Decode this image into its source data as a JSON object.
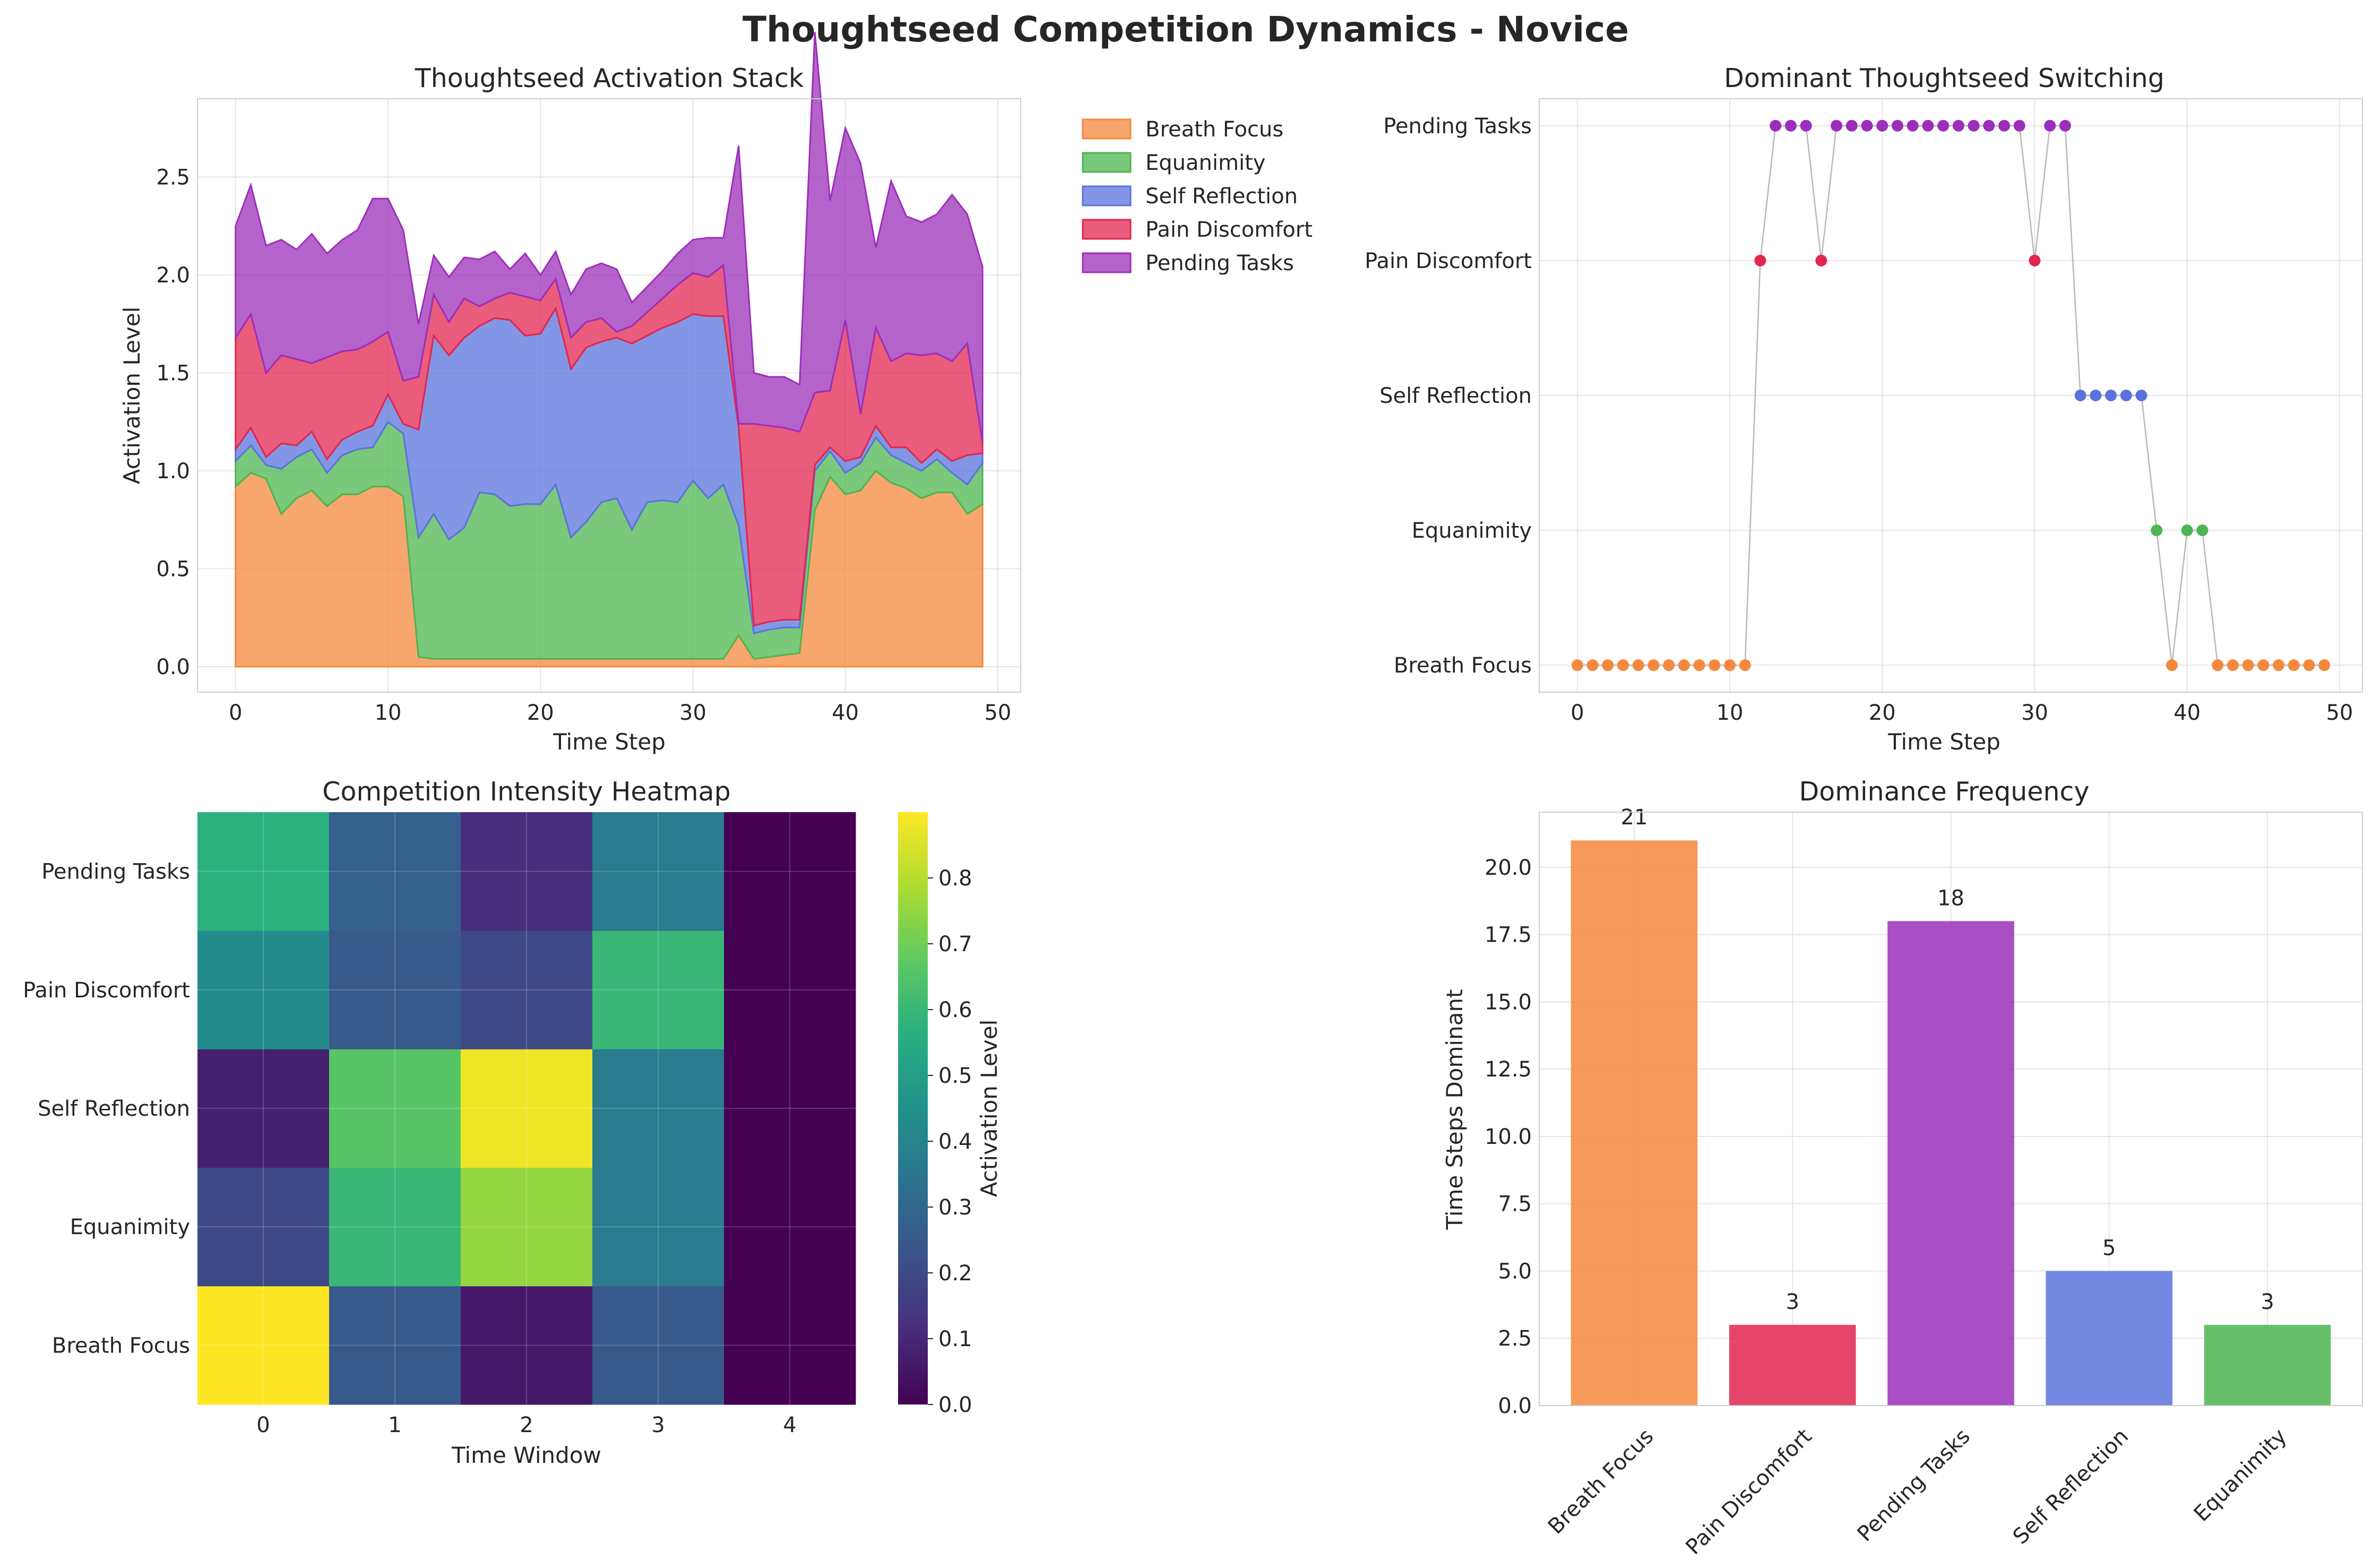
{
  "figure_title": "Thoughtseed Competition Dynamics - Novice",
  "colors": {
    "Breath Focus": "#f4883c",
    "Equanimity": "#4cb54f",
    "Self Reflection": "#5a73dc",
    "Pain Discomfort": "#e2264f",
    "Pending Tasks": "#9b2fba"
  },
  "chart_data": [
    {
      "type": "area",
      "title": "Thoughtseed Activation Stack",
      "xlabel": "Time Step",
      "ylabel": "Activation Level",
      "xlim": [
        -2.5,
        51.5
      ],
      "ylim": [
        -0.13,
        2.9
      ],
      "xticks": [
        0,
        10,
        20,
        30,
        40,
        50
      ],
      "yticks": [
        0.0,
        0.5,
        1.0,
        1.5,
        2.0,
        2.5
      ],
      "ytick_labels": [
        "0.0",
        "0.5",
        "1.0",
        "1.5",
        "2.0",
        "2.5"
      ],
      "x": [
        0,
        1,
        2,
        3,
        4,
        5,
        6,
        7,
        8,
        9,
        10,
        11,
        12,
        13,
        14,
        15,
        16,
        17,
        18,
        19,
        20,
        21,
        22,
        23,
        24,
        25,
        26,
        27,
        28,
        29,
        30,
        31,
        32,
        33,
        34,
        35,
        36,
        37,
        38,
        39,
        40,
        41,
        42,
        43,
        44,
        45,
        46,
        47,
        48,
        49
      ],
      "series": [
        {
          "name": "Breath Focus",
          "values": [
            0.92,
            0.99,
            0.96,
            0.78,
            0.86,
            0.9,
            0.82,
            0.88,
            0.88,
            0.92,
            0.92,
            0.87,
            0.05,
            0.04,
            0.04,
            0.04,
            0.04,
            0.04,
            0.04,
            0.04,
            0.04,
            0.04,
            0.04,
            0.04,
            0.04,
            0.04,
            0.04,
            0.04,
            0.04,
            0.04,
            0.04,
            0.04,
            0.04,
            0.16,
            0.04,
            0.05,
            0.06,
            0.07,
            0.8,
            0.97,
            0.88,
            0.9,
            1.0,
            0.94,
            0.91,
            0.86,
            0.89,
            0.89,
            0.78,
            0.83
          ]
        },
        {
          "name": "Equanimity",
          "values": [
            0.13,
            0.14,
            0.07,
            0.23,
            0.21,
            0.21,
            0.17,
            0.2,
            0.23,
            0.2,
            0.33,
            0.32,
            0.61,
            0.74,
            0.61,
            0.67,
            0.85,
            0.84,
            0.78,
            0.79,
            0.79,
            0.89,
            0.62,
            0.7,
            0.8,
            0.82,
            0.66,
            0.8,
            0.81,
            0.8,
            0.91,
            0.82,
            0.89,
            0.56,
            0.13,
            0.14,
            0.14,
            0.13,
            0.2,
            0.13,
            0.11,
            0.14,
            0.17,
            0.14,
            0.13,
            0.14,
            0.17,
            0.1,
            0.15,
            0.21
          ]
        },
        {
          "name": "Self Reflection",
          "values": [
            0.06,
            0.09,
            0.04,
            0.13,
            0.06,
            0.09,
            0.07,
            0.08,
            0.09,
            0.11,
            0.14,
            0.05,
            0.55,
            0.91,
            0.94,
            0.97,
            0.85,
            0.9,
            0.95,
            0.86,
            0.87,
            0.9,
            0.86,
            0.89,
            0.82,
            0.82,
            0.95,
            0.85,
            0.88,
            0.92,
            0.85,
            0.93,
            0.86,
            0.5,
            0.04,
            0.04,
            0.04,
            0.04,
            0.03,
            0.02,
            0.06,
            0.03,
            0.06,
            0.04,
            0.08,
            0.04,
            0.05,
            0.06,
            0.15,
            0.05
          ]
        },
        {
          "name": "Pain Discomfort",
          "values": [
            0.57,
            0.58,
            0.43,
            0.45,
            0.44,
            0.35,
            0.52,
            0.45,
            0.42,
            0.43,
            0.32,
            0.22,
            0.27,
            0.21,
            0.17,
            0.2,
            0.1,
            0.1,
            0.14,
            0.2,
            0.17,
            0.15,
            0.16,
            0.13,
            0.12,
            0.03,
            0.09,
            0.12,
            0.15,
            0.19,
            0.21,
            0.2,
            0.26,
            0.02,
            1.03,
            1.0,
            0.98,
            0.96,
            0.37,
            0.29,
            0.72,
            0.22,
            0.5,
            0.44,
            0.48,
            0.55,
            0.49,
            0.51,
            0.57,
            0.05
          ]
        },
        {
          "name": "Pending Tasks",
          "values": [
            0.57,
            0.66,
            0.65,
            0.59,
            0.56,
            0.66,
            0.53,
            0.57,
            0.61,
            0.73,
            0.68,
            0.77,
            0.27,
            0.2,
            0.23,
            0.21,
            0.24,
            0.24,
            0.12,
            0.22,
            0.13,
            0.14,
            0.22,
            0.27,
            0.28,
            0.32,
            0.12,
            0.13,
            0.14,
            0.16,
            0.17,
            0.2,
            0.14,
            1.42,
            0.26,
            0.25,
            0.26,
            0.24,
            1.84,
            0.97,
            0.98,
            1.28,
            0.41,
            0.92,
            0.7,
            0.68,
            0.71,
            0.85,
            0.66,
            0.9
          ]
        }
      ]
    },
    {
      "type": "scatter",
      "title": "Dominant Thoughtseed Switching",
      "xlabel": "Time Step",
      "xlim": [
        -2.5,
        51.5
      ],
      "xticks": [
        0,
        10,
        20,
        30,
        40,
        50
      ],
      "ylim": [
        -0.2,
        4.2
      ],
      "categories": [
        "Breath Focus",
        "Equanimity",
        "Self Reflection",
        "Pain Discomfort",
        "Pending Tasks"
      ],
      "x": [
        0,
        1,
        2,
        3,
        4,
        5,
        6,
        7,
        8,
        9,
        10,
        11,
        12,
        13,
        14,
        15,
        16,
        17,
        18,
        19,
        20,
        21,
        22,
        23,
        24,
        25,
        26,
        27,
        28,
        29,
        30,
        31,
        32,
        33,
        34,
        35,
        36,
        37,
        38,
        39,
        40,
        41,
        42,
        43,
        44,
        45,
        46,
        47,
        48,
        49
      ],
      "dominant": [
        0,
        0,
        0,
        0,
        0,
        0,
        0,
        0,
        0,
        0,
        0,
        0,
        3,
        4,
        4,
        4,
        3,
        4,
        4,
        4,
        4,
        4,
        4,
        4,
        4,
        4,
        4,
        4,
        4,
        4,
        3,
        4,
        4,
        2,
        2,
        2,
        2,
        2,
        1,
        0,
        1,
        1,
        0,
        0,
        0,
        0,
        0,
        0,
        0,
        0
      ]
    },
    {
      "type": "heatmap",
      "title": "Competition Intensity Heatmap",
      "xlabel": "Time Window",
      "colorbar_label": "Activation Level",
      "x": [
        "0",
        "1",
        "2",
        "3",
        "4"
      ],
      "y": [
        "Breath Focus",
        "Equanimity",
        "Self Reflection",
        "Pain Discomfort",
        "Pending Tasks"
      ],
      "values": [
        [
          0.9,
          0.25,
          0.06,
          0.25,
          0.0
        ],
        [
          0.2,
          0.6,
          0.75,
          0.37,
          0.0
        ],
        [
          0.08,
          0.66,
          0.88,
          0.37,
          0.0
        ],
        [
          0.43,
          0.25,
          0.2,
          0.6,
          0.0
        ],
        [
          0.57,
          0.27,
          0.12,
          0.37,
          0.0
        ]
      ],
      "vmin": 0.0,
      "vmax": 0.9,
      "colorbar_ticks": [
        0.0,
        0.1,
        0.2,
        0.3,
        0.4,
        0.5,
        0.6,
        0.7,
        0.8
      ],
      "colorbar_tick_labels": [
        "0.0",
        "0.1",
        "0.2",
        "0.3",
        "0.4",
        "0.5",
        "0.6",
        "0.7",
        "0.8"
      ]
    },
    {
      "type": "bar",
      "title": "Dominance Frequency",
      "ylabel": "Time Steps Dominant",
      "categories": [
        "Breath Focus",
        "Pain Discomfort",
        "Pending Tasks",
        "Self Reflection",
        "Equanimity"
      ],
      "values": [
        21,
        3,
        18,
        5,
        3
      ],
      "value_labels": [
        "21",
        "3",
        "18",
        "5",
        "3"
      ],
      "ylim": [
        0,
        22.05
      ],
      "yticks": [
        0.0,
        2.5,
        5.0,
        7.5,
        10.0,
        12.5,
        15.0,
        17.5,
        20.0
      ],
      "ytick_labels": [
        "0.0",
        "2.5",
        "5.0",
        "7.5",
        "10.0",
        "12.5",
        "15.0",
        "17.5",
        "20.0"
      ]
    }
  ]
}
